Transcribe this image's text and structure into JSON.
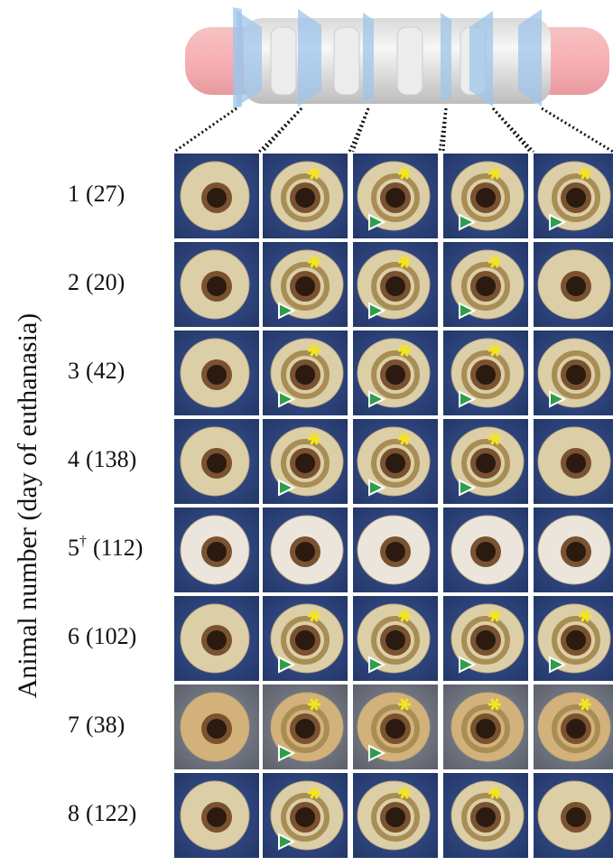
{
  "y_axis_label": "Animal number (day of euthanasia)",
  "rows": [
    {
      "animal": "1",
      "day": "(27)"
    },
    {
      "animal": "2",
      "day": "(20)"
    },
    {
      "animal": "3",
      "day": "(42)"
    },
    {
      "animal": "4",
      "day": "(138)"
    },
    {
      "animal": "5",
      "note": "†",
      "day": "(112)"
    },
    {
      "animal": "6",
      "day": "(102)"
    },
    {
      "animal": "7",
      "day": "(38)"
    },
    {
      "animal": "8",
      "day": "(122)"
    }
  ]
}
